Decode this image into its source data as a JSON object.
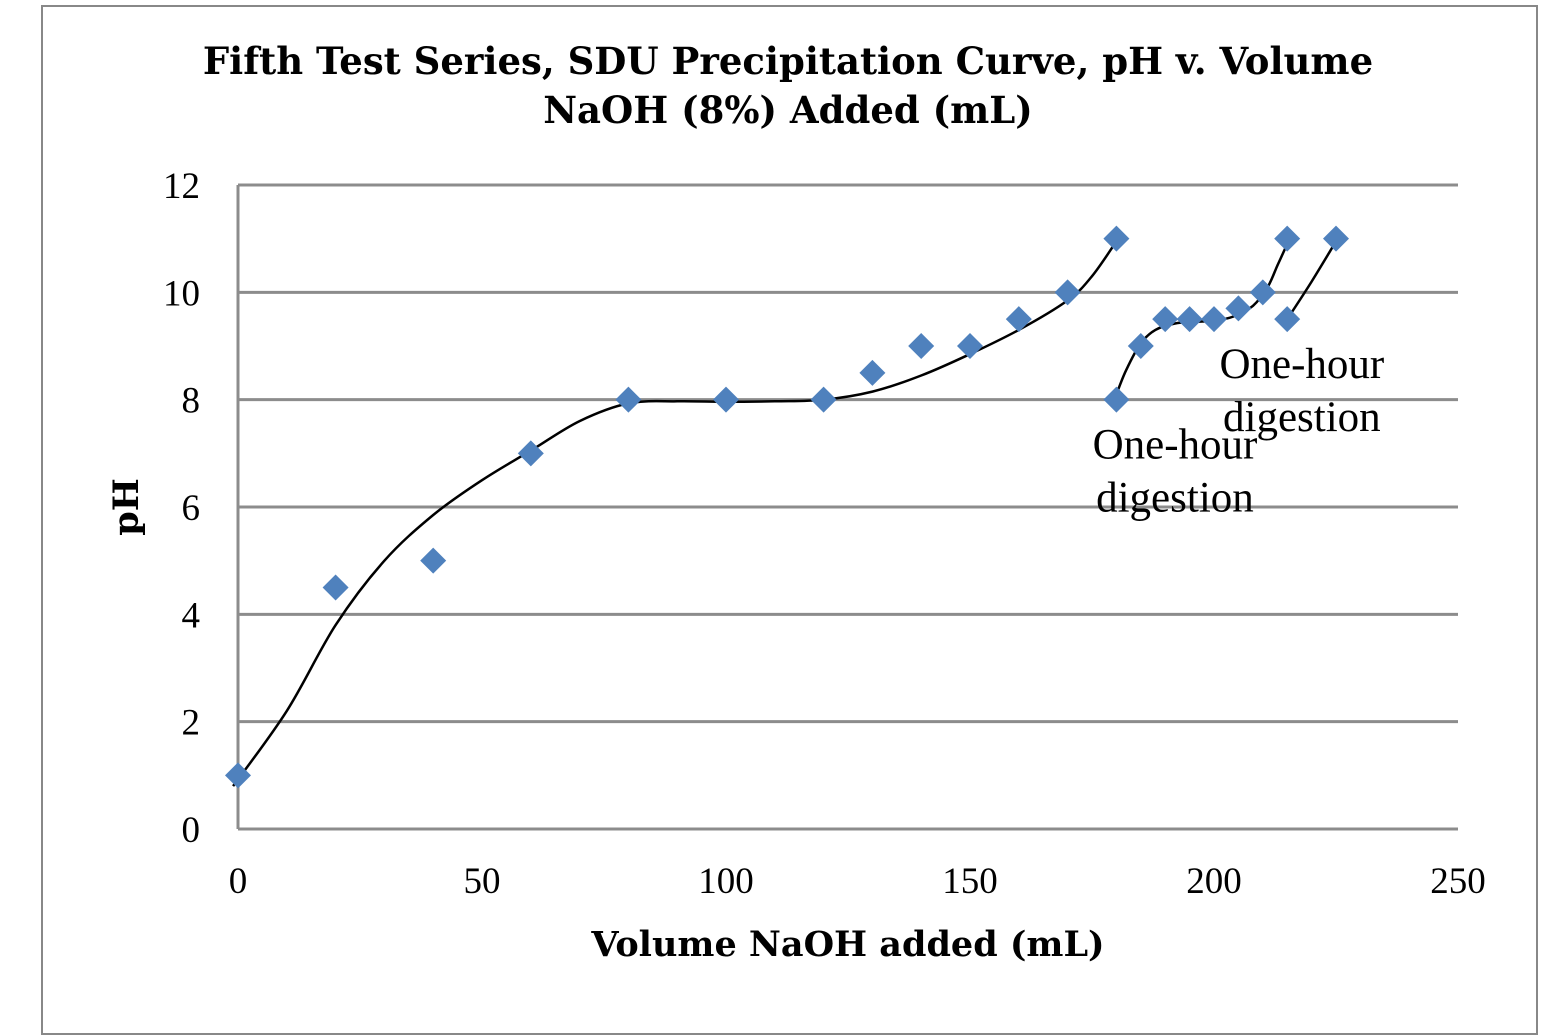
{
  "chart_data": {
    "type": "scatter",
    "title_lines": [
      "Fifth Test Series, SDU Precipitation Curve, pH v. Volume",
      "NaOH (8%) Added (mL)"
    ],
    "xlabel": "Volume NaOH added (mL)",
    "ylabel": "pH",
    "xlim": [
      0,
      250
    ],
    "ylim": [
      0,
      12
    ],
    "x_ticks": [
      0,
      50,
      100,
      150,
      200,
      250
    ],
    "y_ticks": [
      0,
      2,
      4,
      6,
      8,
      10,
      12
    ],
    "grid": "horizontal",
    "marker": "diamond",
    "colors": {
      "marker": "#4F81BD",
      "grid": "#8C8C8C",
      "trend": "#000000",
      "frame": "#888888"
    },
    "points": [
      {
        "x": 0,
        "y": 1
      },
      {
        "x": 20,
        "y": 4.5
      },
      {
        "x": 40,
        "y": 5
      },
      {
        "x": 60,
        "y": 7
      },
      {
        "x": 80,
        "y": 8
      },
      {
        "x": 100,
        "y": 8
      },
      {
        "x": 120,
        "y": 8
      },
      {
        "x": 130,
        "y": 8.5
      },
      {
        "x": 140,
        "y": 9
      },
      {
        "x": 150,
        "y": 9
      },
      {
        "x": 160,
        "y": 9.5
      },
      {
        "x": 170,
        "y": 10
      },
      {
        "x": 180,
        "y": 11
      },
      {
        "x": 180,
        "y": 8
      },
      {
        "x": 185,
        "y": 9
      },
      {
        "x": 190,
        "y": 9.5
      },
      {
        "x": 195,
        "y": 9.5
      },
      {
        "x": 200,
        "y": 9.5
      },
      {
        "x": 205,
        "y": 9.7
      },
      {
        "x": 210,
        "y": 10
      },
      {
        "x": 215,
        "y": 11
      },
      {
        "x": 215,
        "y": 9.5
      },
      {
        "x": 225,
        "y": 11
      }
    ],
    "trendlines": [
      [
        [
          -1,
          0.8
        ],
        [
          10,
          2.2
        ],
        [
          20,
          3.8
        ],
        [
          30,
          5.0
        ],
        [
          40,
          5.85
        ],
        [
          50,
          6.5
        ],
        [
          60,
          7.05
        ],
        [
          70,
          7.6
        ],
        [
          80,
          7.93
        ],
        [
          90,
          7.97
        ],
        [
          100,
          7.96
        ],
        [
          110,
          7.97
        ],
        [
          120,
          8.0
        ],
        [
          130,
          8.15
        ],
        [
          140,
          8.45
        ],
        [
          150,
          8.85
        ],
        [
          160,
          9.3
        ],
        [
          170,
          9.85
        ],
        [
          175,
          10.3
        ],
        [
          180,
          10.95
        ]
      ],
      [
        [
          180,
          8.1
        ],
        [
          182,
          8.55
        ],
        [
          185,
          9.05
        ],
        [
          188,
          9.3
        ],
        [
          192,
          9.42
        ],
        [
          196,
          9.45
        ],
        [
          200,
          9.47
        ],
        [
          204,
          9.55
        ],
        [
          208,
          9.75
        ],
        [
          211,
          10.1
        ],
        [
          213,
          10.5
        ],
        [
          215,
          10.9
        ]
      ],
      [
        [
          215,
          9.5
        ],
        [
          220,
          10.2
        ],
        [
          225,
          10.95
        ]
      ]
    ],
    "annotations": [
      {
        "lines": [
          "One-hour",
          "digestion"
        ],
        "x": 192,
        "y": 6.9
      },
      {
        "lines": [
          "One-hour",
          "digestion"
        ],
        "x": 218,
        "y": 8.4
      }
    ]
  }
}
